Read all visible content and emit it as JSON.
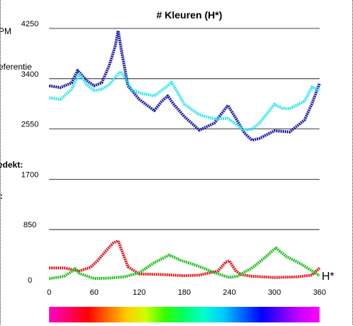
{
  "chart_data": {
    "type": "line",
    "title": "# Kleuren (H*)",
    "xlabel": "H*",
    "xlim": [
      0,
      360
    ],
    "ylim": [
      0,
      4250
    ],
    "x_ticks": [
      0,
      60,
      120,
      180,
      240,
      300,
      360
    ],
    "y_ticks": [
      0,
      850,
      1700,
      2550,
      3400,
      4250
    ],
    "cropped_labels": [
      "PM",
      "eferentie",
      "edekt:",
      ":"
    ],
    "grid": "horizontal",
    "series": [
      {
        "color": "#1a1aa8",
        "x": [
          0,
          15,
          30,
          38,
          50,
          60,
          70,
          80,
          88,
          92,
          96,
          105,
          120,
          140,
          150,
          158,
          165,
          180,
          200,
          220,
          238,
          250,
          260,
          270,
          280,
          300,
          320,
          340,
          350,
          360
        ],
        "y": [
          3280,
          3250,
          3330,
          3540,
          3370,
          3280,
          3330,
          3620,
          3950,
          4210,
          3900,
          3280,
          3050,
          2860,
          3020,
          3110,
          2980,
          2760,
          2530,
          2650,
          2950,
          2700,
          2480,
          2360,
          2390,
          2520,
          2500,
          2700,
          2980,
          3320
        ]
      },
      {
        "color": "#2ee6f0",
        "x": [
          0,
          15,
          30,
          40,
          50,
          60,
          70,
          80,
          90,
          95,
          100,
          110,
          120,
          140,
          155,
          163,
          170,
          180,
          200,
          220,
          238,
          250,
          260,
          270,
          280,
          300,
          310,
          320,
          340,
          350,
          360
        ],
        "y": [
          3080,
          3050,
          3220,
          3480,
          3300,
          3200,
          3220,
          3300,
          3450,
          3520,
          3440,
          3210,
          3160,
          3110,
          3250,
          3340,
          3190,
          2970,
          2790,
          2720,
          2730,
          2620,
          2530,
          2550,
          2650,
          2970,
          2900,
          2890,
          3020,
          3260,
          3200
        ]
      },
      {
        "color": "#dd1a1a",
        "x": [
          0,
          20,
          40,
          55,
          65,
          75,
          85,
          92,
          96,
          105,
          120,
          150,
          180,
          200,
          225,
          235,
          240,
          248,
          255,
          270,
          300,
          330,
          350,
          360
        ],
        "y": [
          200,
          200,
          150,
          210,
          330,
          480,
          620,
          660,
          520,
          220,
          100,
          90,
          70,
          80,
          150,
          300,
          320,
          160,
          90,
          60,
          40,
          50,
          80,
          200
        ]
      },
      {
        "color": "#22c022",
        "x": [
          0,
          10,
          20,
          30,
          35,
          40,
          60,
          80,
          100,
          120,
          140,
          160,
          165,
          175,
          190,
          205,
          220,
          235,
          240,
          250,
          270,
          285,
          298,
          302,
          315,
          335,
          350,
          360
        ],
        "y": [
          20,
          40,
          60,
          140,
          190,
          110,
          20,
          30,
          50,
          120,
          290,
          420,
          390,
          330,
          270,
          200,
          120,
          60,
          40,
          60,
          200,
          350,
          500,
          540,
          400,
          270,
          150,
          70
        ]
      }
    ]
  },
  "colorbar": {
    "hues": [
      "#ff00cc",
      "#ff0066",
      "#ff0000",
      "#ff6600",
      "#ffcc00",
      "#ccff00",
      "#33ff00",
      "#00ff66",
      "#00ffcc",
      "#00ccff",
      "#0066ff",
      "#0000ff",
      "#6600ff",
      "#cc00ff",
      "#ff00ff"
    ]
  }
}
